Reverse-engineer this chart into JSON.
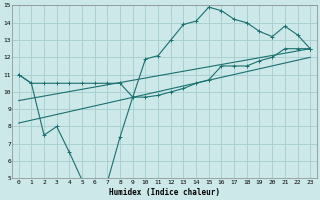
{
  "xlabel": "Humidex (Indice chaleur)",
  "x_ticks": [
    0,
    1,
    2,
    3,
    4,
    5,
    6,
    7,
    8,
    9,
    10,
    11,
    12,
    13,
    14,
    15,
    16,
    17,
    18,
    19,
    20,
    21,
    22,
    23
  ],
  "ylim": [
    5,
    15
  ],
  "xlim": [
    -0.5,
    23.5
  ],
  "yticks": [
    5,
    6,
    7,
    8,
    9,
    10,
    11,
    12,
    13,
    14,
    15
  ],
  "background_color": "#cce8e8",
  "grid_color": "#aad0d0",
  "line_color": "#1a7070",
  "line1_x": [
    0,
    1,
    2,
    3,
    4,
    5,
    6,
    7,
    8,
    9,
    10,
    11,
    12,
    13,
    14,
    15,
    16,
    17,
    18,
    19,
    20,
    21,
    22,
    23
  ],
  "line1_y": [
    11.0,
    10.5,
    7.5,
    8.0,
    6.5,
    4.9,
    4.9,
    4.8,
    7.4,
    9.7,
    11.9,
    12.1,
    13.0,
    13.9,
    14.1,
    14.9,
    14.7,
    14.2,
    14.0,
    13.5,
    13.2,
    13.8,
    13.3,
    12.5
  ],
  "line2_x": [
    0,
    1,
    2,
    3,
    4,
    5,
    6,
    7,
    8,
    9,
    10,
    11,
    12,
    13,
    14,
    15,
    16,
    17,
    18,
    19,
    20,
    21,
    22,
    23
  ],
  "line2_y": [
    11.0,
    10.5,
    10.5,
    10.5,
    10.5,
    10.5,
    10.5,
    10.5,
    10.5,
    9.7,
    9.7,
    9.8,
    10.0,
    10.2,
    10.5,
    10.7,
    11.5,
    11.5,
    11.5,
    11.8,
    12.0,
    12.5,
    12.5,
    12.5
  ],
  "line3_x": [
    0,
    23
  ],
  "line3_y": [
    8.2,
    12.0
  ],
  "line4_x": [
    0,
    23
  ],
  "line4_y": [
    9.5,
    12.5
  ]
}
